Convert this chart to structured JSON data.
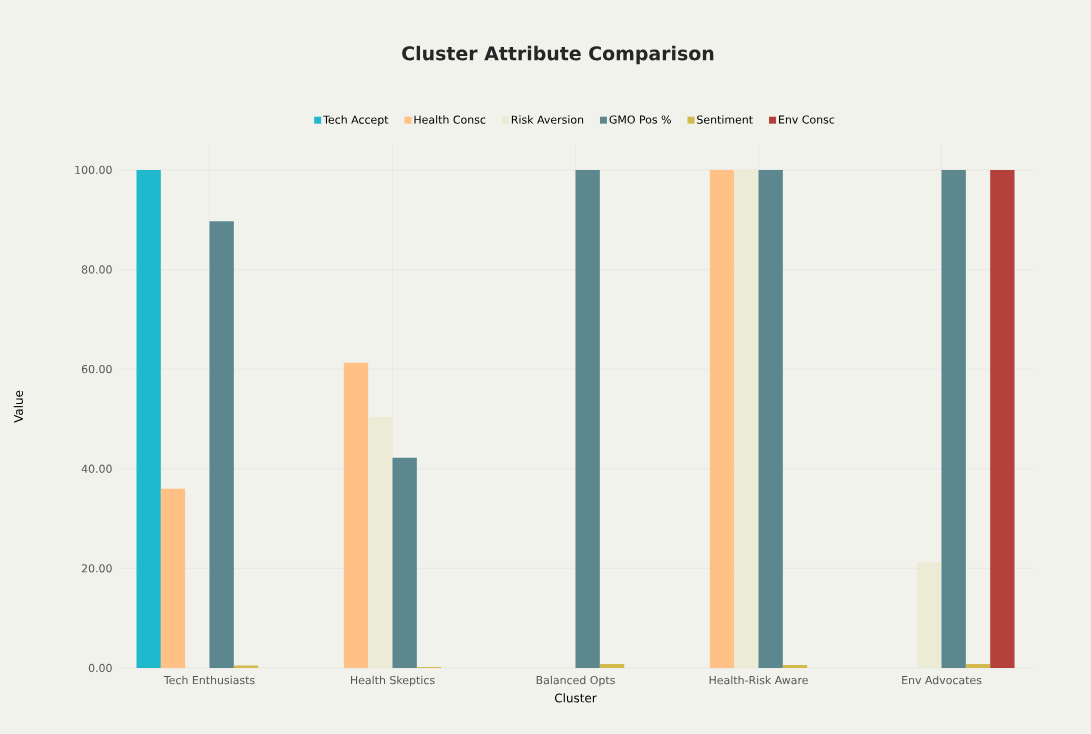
{
  "chart_data": {
    "type": "bar",
    "title": "Cluster Attribute Comparison",
    "xlabel": "Cluster",
    "ylabel": "Value",
    "categories": [
      "Tech Enthusiasts",
      "Health Skeptics",
      "Balanced Opts",
      "Health-Risk Aware",
      "Env Advocates"
    ],
    "series": [
      {
        "name": "Tech Accept",
        "color": "#1fb8cd",
        "values": [
          100,
          0,
          0,
          0,
          0
        ]
      },
      {
        "name": "Health Consc",
        "color": "#ffc185",
        "values": [
          36,
          61.3,
          0,
          100,
          0
        ]
      },
      {
        "name": "Risk Aversion",
        "color": "#eceBd5",
        "values": [
          0,
          50.4,
          0,
          100,
          21.2
        ]
      },
      {
        "name": "GMO Pos %",
        "color": "#5d878f",
        "values": [
          89.7,
          42.2,
          100,
          100,
          100
        ]
      },
      {
        "name": "Sentiment",
        "color": "#d2ba4c",
        "values": [
          0.5,
          0.2,
          0.8,
          0.6,
          0.8
        ]
      },
      {
        "name": "Env Consc",
        "color": "#b4413c",
        "values": [
          0,
          0,
          0,
          0,
          100
        ]
      }
    ],
    "ylim": [
      0,
      105
    ],
    "yticks": [
      {
        "value": 0,
        "label": "0.00"
      },
      {
        "value": 20,
        "label": "20.00"
      },
      {
        "value": 40,
        "label": "40.00"
      },
      {
        "value": 60,
        "label": "60.00"
      },
      {
        "value": 80,
        "label": "80.00"
      },
      {
        "value": 100,
        "label": "100.00"
      }
    ],
    "grid": true,
    "legend": "top"
  }
}
